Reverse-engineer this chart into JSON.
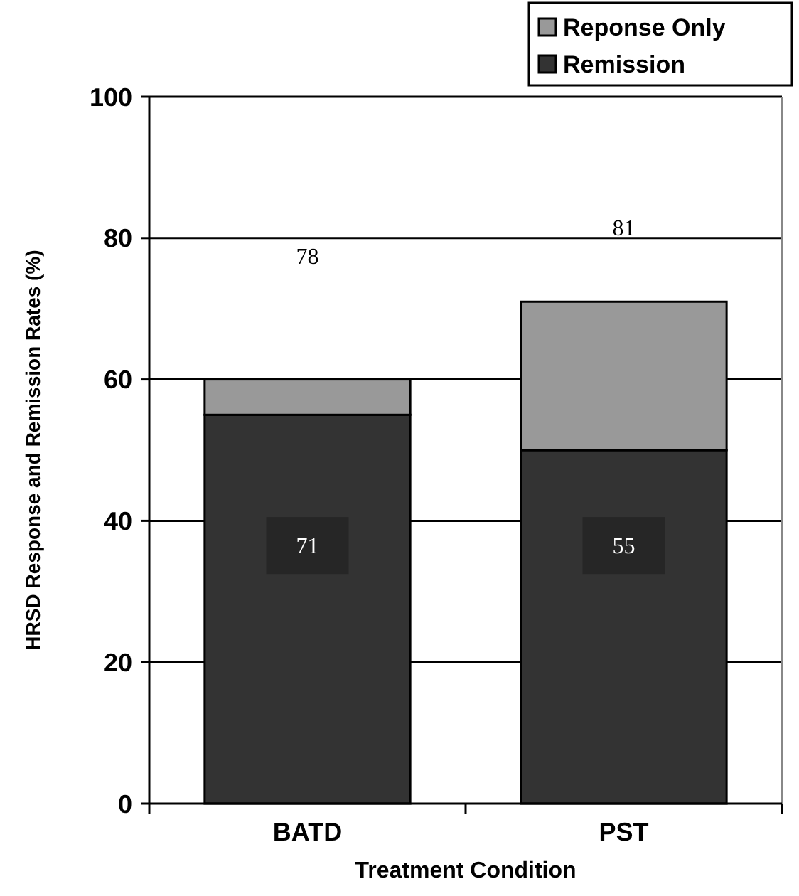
{
  "chart_data": {
    "type": "bar",
    "stacked": true,
    "xlabel": "Treatment Condition",
    "ylabel": "HRSD Response and Remission Rates (%)",
    "categories": [
      "BATD",
      "PST"
    ],
    "series": [
      {
        "name": "Remission",
        "color": "#333333",
        "values": [
          55,
          50
        ]
      },
      {
        "name": "Reponse Only",
        "color": "#999999",
        "values": [
          5,
          21
        ]
      }
    ],
    "ylim": [
      0,
      100
    ],
    "yticks": [
      0,
      20,
      40,
      60,
      80,
      100
    ],
    "grid": "y",
    "legend": "top right",
    "annotations": [
      "78",
      "81",
      "71",
      "55"
    ]
  }
}
